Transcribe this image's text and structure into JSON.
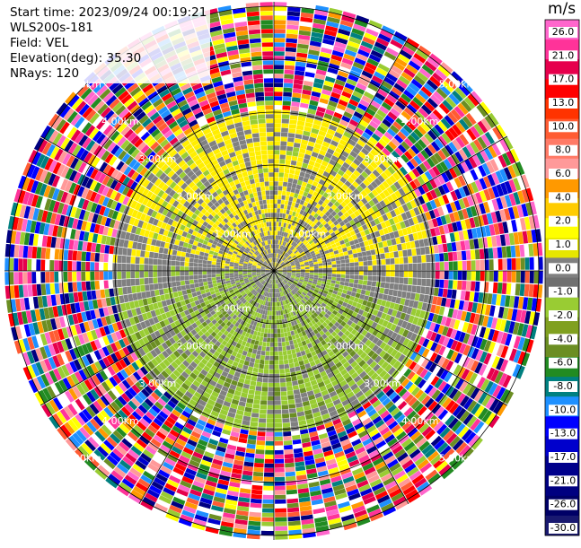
{
  "header": {
    "start_time": "Start time: 2023/09/24 00:19:21",
    "instrument": "WLS200s-181",
    "field": "Field: VEL",
    "elevation": "Elevation(deg): 35.30",
    "nrays": "NRays: 120"
  },
  "colorbar": {
    "unit": "m/s",
    "ticks": [
      "26.0",
      "21.0",
      "17.0",
      "13.0",
      "10.0",
      "8.0",
      "6.0",
      "4.0",
      "2.0",
      "1.0",
      "0.0",
      "-1.0",
      "-2.0",
      "-4.0",
      "-6.0",
      "-8.0",
      "-10.0",
      "-13.0",
      "-17.0",
      "-21.0",
      "-26.0",
      "-30.0"
    ],
    "colors": [
      "#ff66cc",
      "#ff3399",
      "#e6004c",
      "#ff0000",
      "#ff3300",
      "#ff5c33",
      "#ff7a66",
      "#ff9999",
      "#ff9900",
      "#ffcc00",
      "#ffff00",
      "#e6e600",
      "#808080",
      "#707070",
      "#99cc33",
      "#80a020",
      "#6b8e23",
      "#228b22",
      "#008080",
      "#1e90ff",
      "#0000ff",
      "#0000cc",
      "#00008b",
      "#000080",
      "#000066",
      "#191970"
    ]
  },
  "chart_data": {
    "type": "heatmap",
    "projection": "polar (PPI)",
    "field": "VEL",
    "units": "m/s",
    "nrays": 120,
    "range_ring_labels": [
      "1.00km",
      "2.00km",
      "3.00km",
      "4.00km",
      "5.00km"
    ],
    "range_rings_km": [
      1,
      2,
      3,
      4,
      5
    ],
    "colorbar_range": [
      -30.0,
      26.0
    ]
  }
}
